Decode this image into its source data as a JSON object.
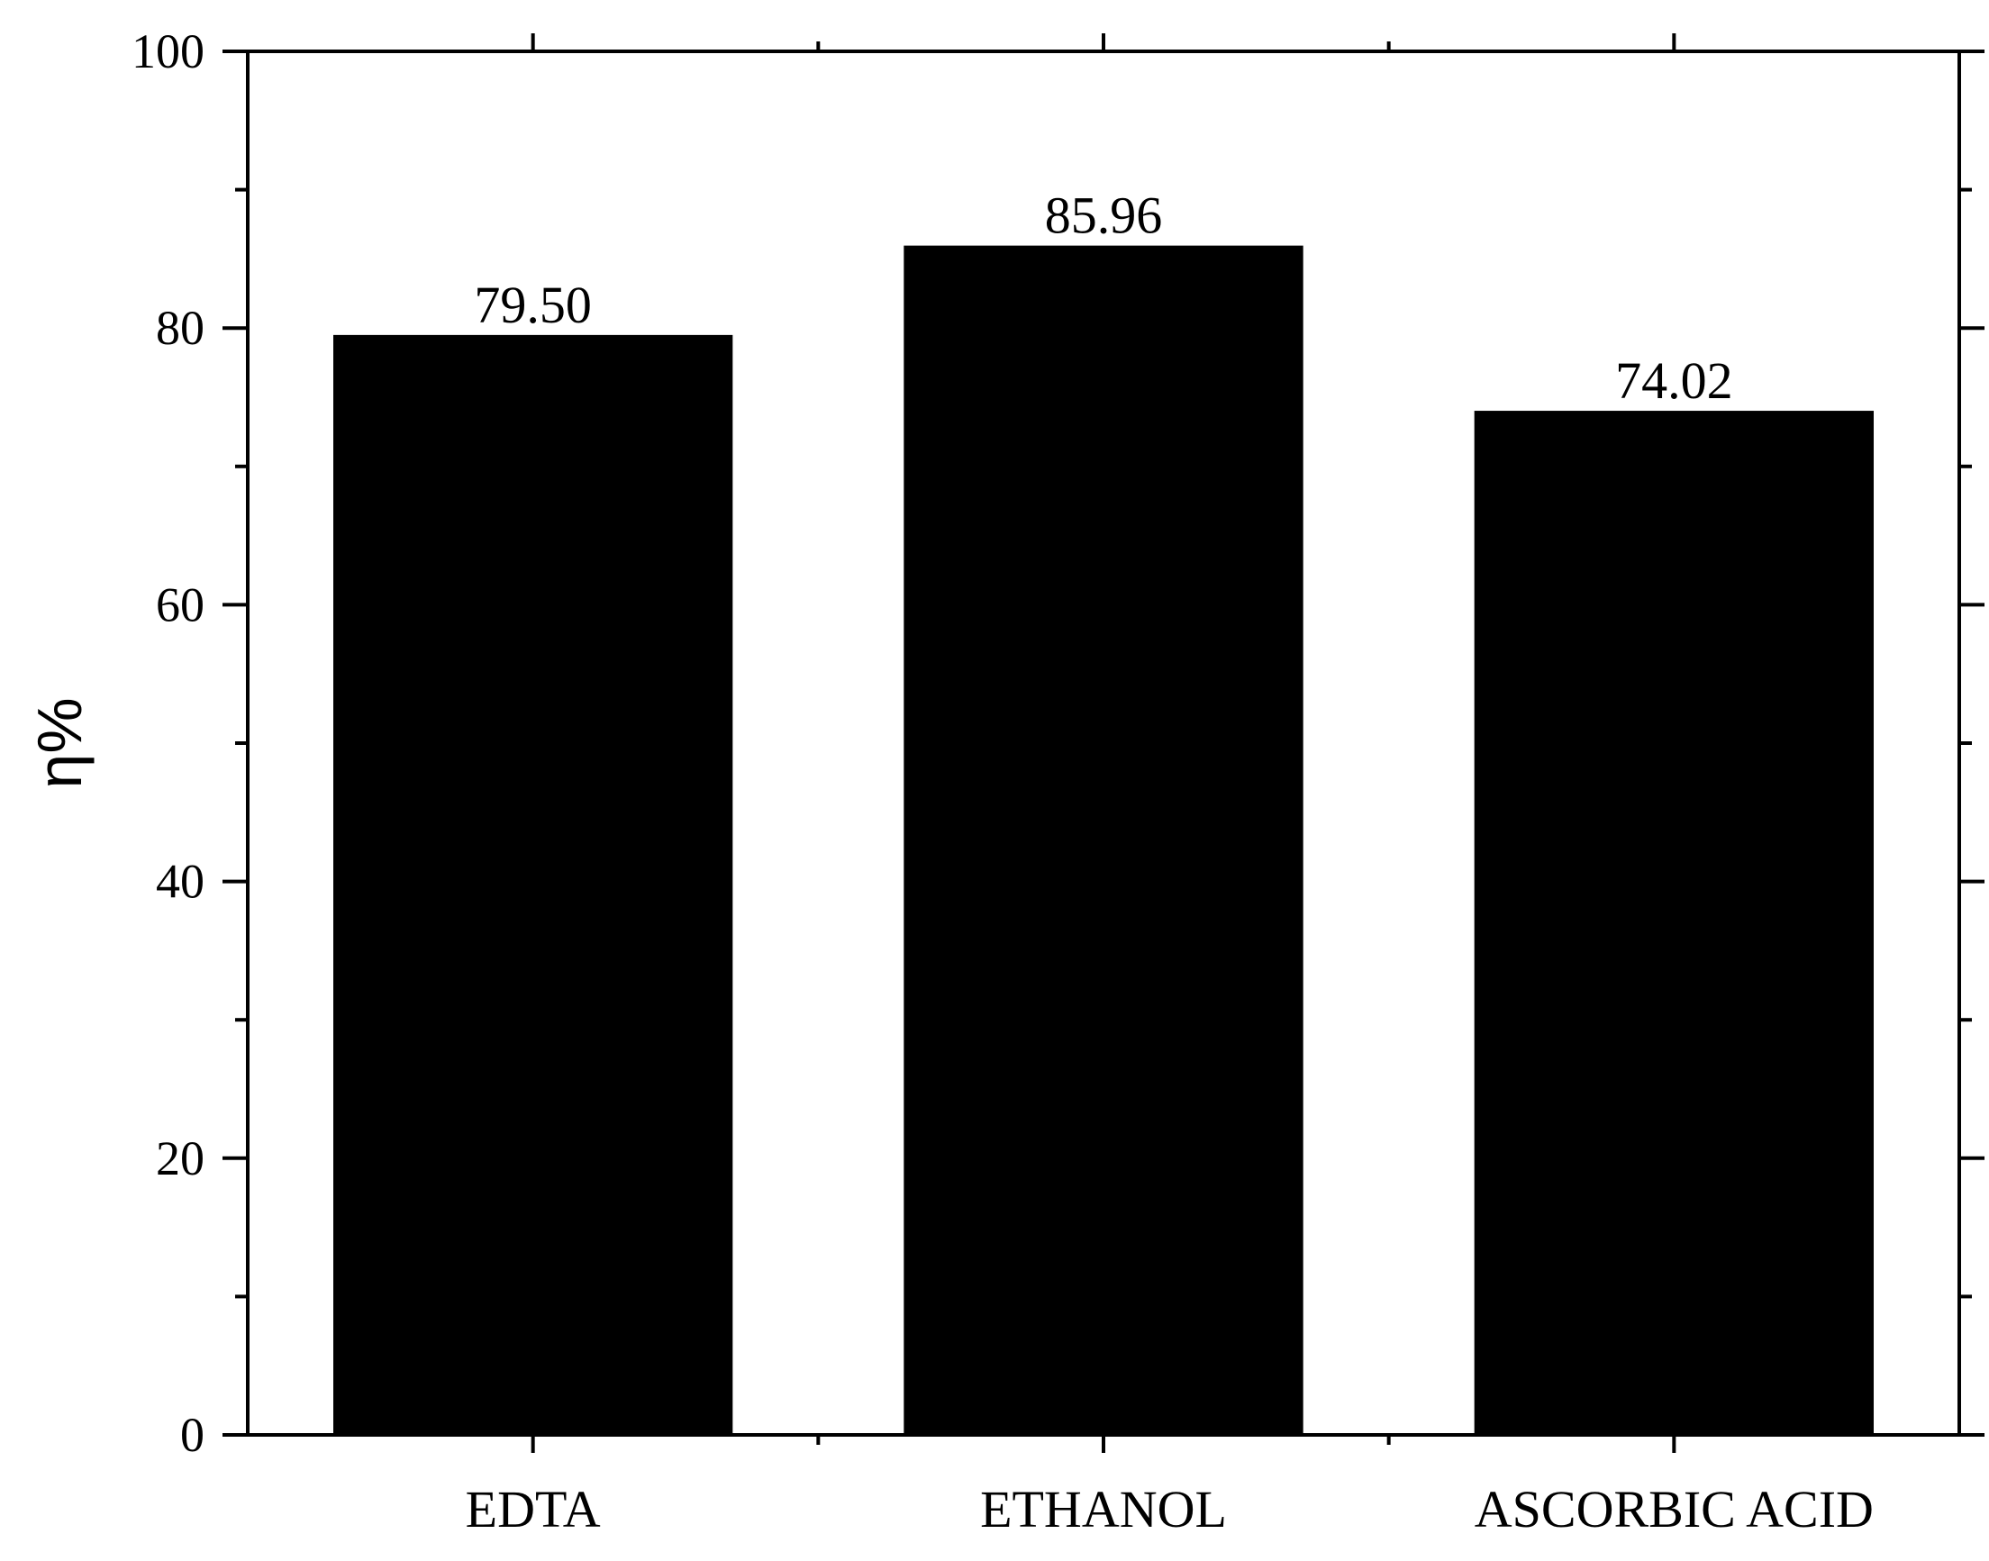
{
  "chart_data": {
    "type": "bar",
    "title": "",
    "xlabel": "",
    "ylabel": "η%",
    "categories": [
      "EDTA",
      "ETHANOL",
      "ASCORBIC ACID"
    ],
    "values": [
      79.5,
      85.96,
      74.02
    ],
    "data_labels": [
      "79.50",
      "85.96",
      "74.02"
    ],
    "ylim": [
      0,
      100
    ],
    "y_major_ticks": [
      0,
      20,
      40,
      60,
      80,
      100
    ],
    "y_minor_ticks": [
      10,
      30,
      50,
      70,
      90
    ],
    "grid": false,
    "legend": "none",
    "bar_color": "#000000"
  }
}
